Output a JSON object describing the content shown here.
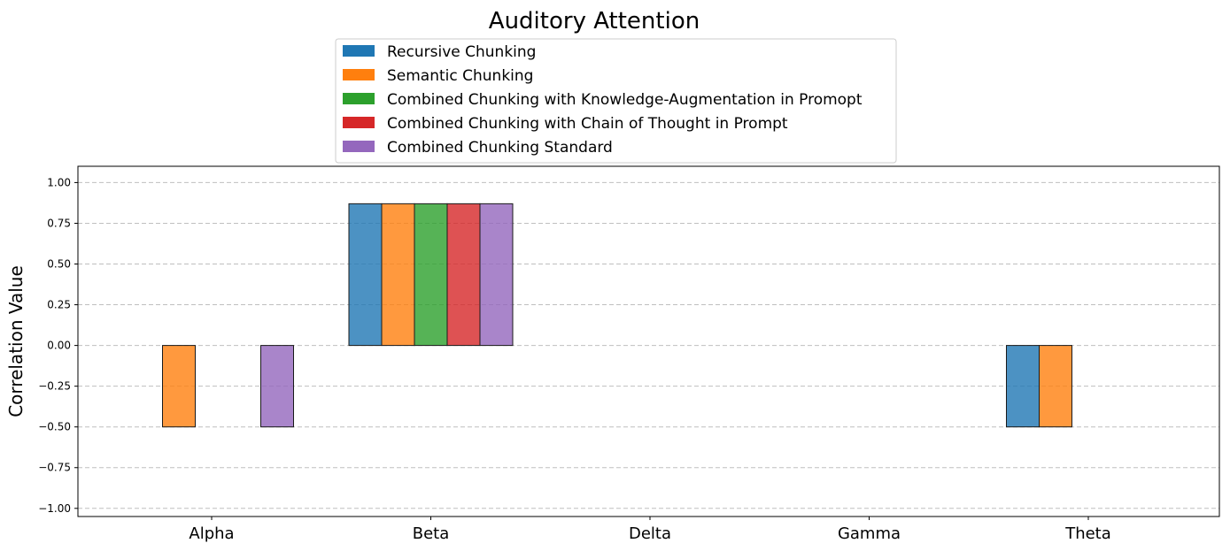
{
  "chart_data": {
    "type": "bar",
    "title": "Auditory Attention",
    "xlabel": "",
    "ylabel": "Correlation Value",
    "categories": [
      "Alpha",
      "Beta",
      "Delta",
      "Gamma",
      "Theta"
    ],
    "ylim": [
      -1.05,
      1.1
    ],
    "yticks": [
      1.0,
      0.75,
      0.5,
      0.25,
      0.0,
      -0.25,
      -0.5,
      -0.75,
      -1.0
    ],
    "ytick_labels": [
      "1.00",
      "0.75",
      "0.50",
      "0.25",
      "0.00",
      "−0.25",
      "−0.50",
      "−0.75",
      "−1.00"
    ],
    "grid": "y, dashed",
    "legend_position": "top-center",
    "series": [
      {
        "name": "Recursive Chunking",
        "color": "#1f77b4",
        "values": [
          0.0,
          0.87,
          null,
          null,
          -0.5
        ]
      },
      {
        "name": "Semantic Chunking",
        "color": "#ff7f0e",
        "values": [
          -0.5,
          0.87,
          null,
          null,
          -0.5
        ]
      },
      {
        "name": "Combined Chunking with Knowledge-Augmentation in Promopt",
        "color": "#2ca02c",
        "values": [
          0.0,
          0.87,
          null,
          null,
          0.0
        ]
      },
      {
        "name": "Combined Chunking with Chain of Thought in Prompt",
        "color": "#d62728",
        "values": [
          0.0,
          0.87,
          null,
          null,
          0.0
        ]
      },
      {
        "name": "Combined Chunking Standard",
        "color": "#9467bd",
        "values": [
          -0.5,
          0.87,
          null,
          null,
          0.0
        ]
      }
    ]
  }
}
